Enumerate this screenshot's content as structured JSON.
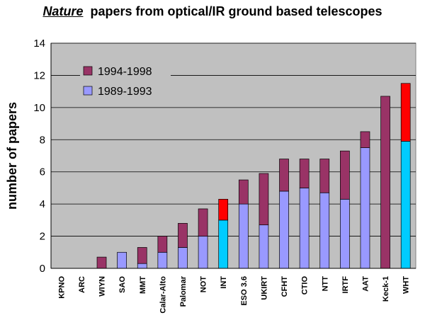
{
  "chart_data": {
    "type": "bar",
    "stacked": true,
    "title_emphasis": "Nature",
    "title_rest": "papers from optical/IR ground based telescopes",
    "xlabel": "",
    "ylabel": "number of papers",
    "ylim": [
      0,
      14
    ],
    "yticks": [
      0,
      2,
      4,
      6,
      8,
      10,
      12,
      14
    ],
    "grid": true,
    "legend_position": "top-left",
    "categories": [
      "KPNO",
      "ARC",
      "WIYN",
      "SAO",
      "MMT",
      "Calar-Alto",
      "Palomar",
      "NOT",
      "INT",
      "ESO 3.6",
      "UKIRT",
      "CFHT",
      "CTIO",
      "NTT",
      "IRTF",
      "AAT",
      "Keck-1",
      "WHT"
    ],
    "series": [
      {
        "name": "1989-1993",
        "color": "#9999ff",
        "values": [
          0,
          0,
          0,
          1.0,
          0.3,
          1.0,
          1.3,
          2.0,
          3.0,
          4.0,
          2.7,
          4.8,
          5.0,
          4.7,
          4.3,
          7.5,
          0,
          7.9
        ]
      },
      {
        "name": "1994-1998",
        "color": "#993366",
        "values": [
          0,
          0,
          0.7,
          0,
          1.0,
          1.0,
          1.5,
          1.7,
          1.3,
          1.5,
          3.2,
          2.0,
          1.8,
          2.1,
          3.0,
          1.0,
          10.7,
          3.6
        ]
      }
    ],
    "highlight": {
      "categories": [
        "INT",
        "WHT"
      ],
      "lower_color": "#00ccff",
      "upper_color": "#ff0000"
    },
    "legend": [
      "1994-1998",
      "1989-1993"
    ]
  }
}
